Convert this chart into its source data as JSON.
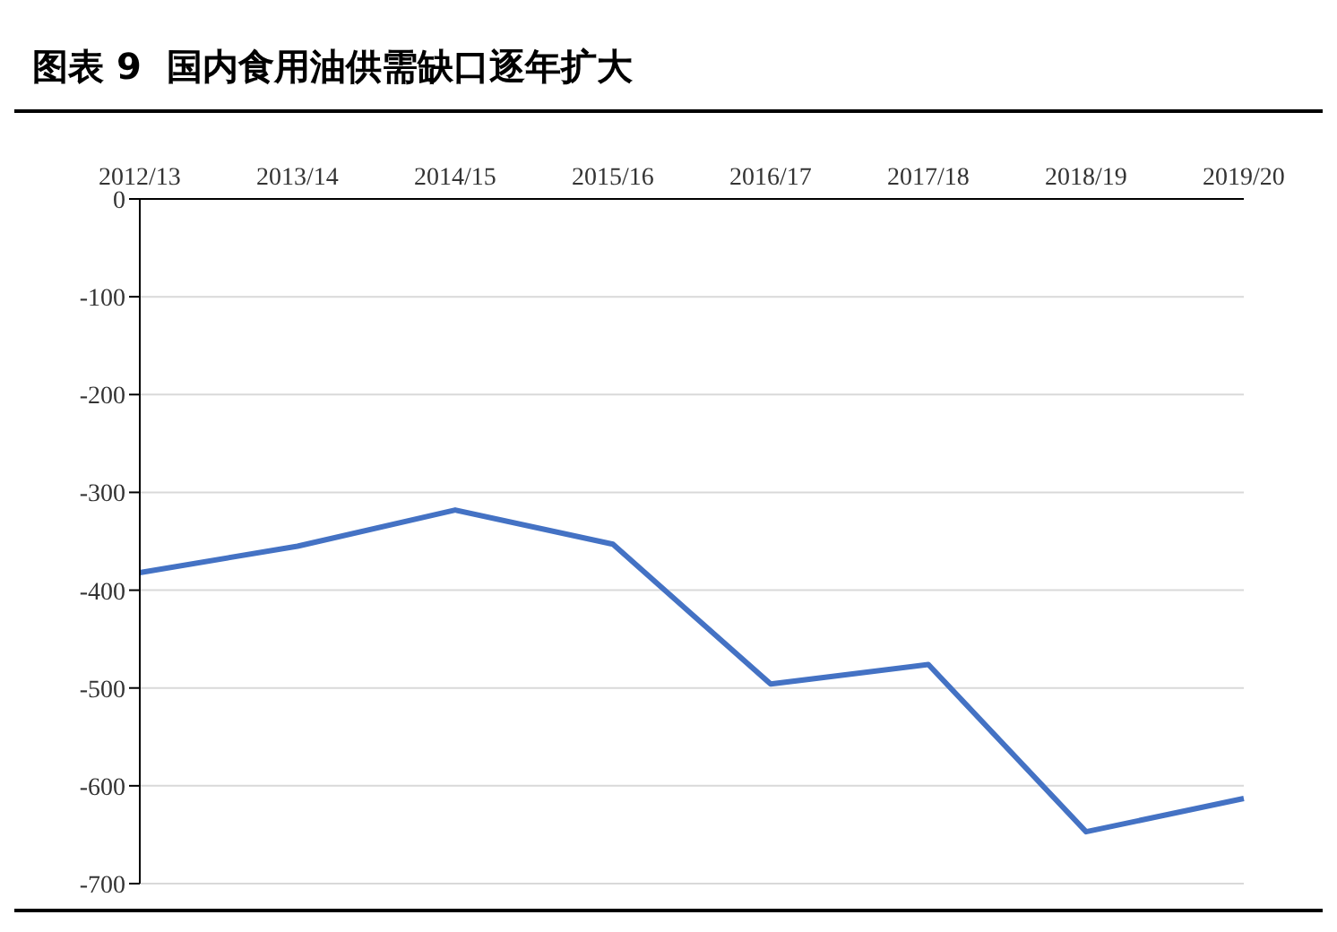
{
  "chart_data": {
    "type": "line",
    "title": "图表 9  国内食用油供需缺口逐年扩大",
    "categories": [
      "2012/13",
      "2013/14",
      "2014/15",
      "2015/16",
      "2016/17",
      "2017/18",
      "2018/19",
      "2019/20"
    ],
    "series": [
      {
        "color": "#4472c4",
        "values": [
          -382,
          -355,
          -318,
          -353,
          -496,
          -476,
          -647,
          -613
        ]
      }
    ],
    "ylim": [
      -700,
      0
    ],
    "yticks": [
      0,
      -100,
      -200,
      -300,
      -400,
      -500,
      -600,
      -700
    ],
    "grid": "y",
    "marker": "none",
    "line_style": "solid"
  }
}
